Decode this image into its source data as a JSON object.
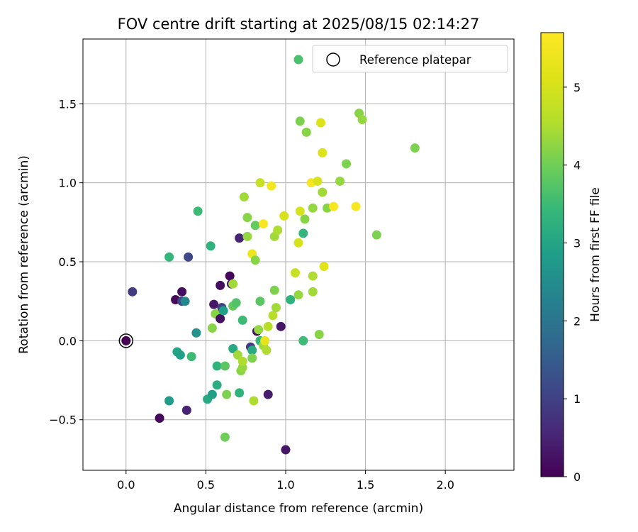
{
  "chart_data": {
    "type": "scatter",
    "title": "FOV centre drift starting at 2025/08/15 02:14:27",
    "xlabel": "Angular distance from reference (arcmin)",
    "ylabel": "Rotation from reference (arcmin)",
    "xlim": [
      -0.27,
      2.43
    ],
    "ylim": [
      -0.82,
      1.91
    ],
    "x_ticks": [
      0.0,
      0.5,
      1.0,
      1.5,
      2.0
    ],
    "x_tick_labels": [
      "0.0",
      "0.5",
      "1.0",
      "1.5",
      "2.0"
    ],
    "y_ticks": [
      -0.5,
      0.0,
      0.5,
      1.0,
      1.5
    ],
    "y_tick_labels": [
      "−0.5",
      "0.0",
      "0.5",
      "1.0",
      "1.5"
    ],
    "grid": true,
    "colormap": "viridis",
    "colorbar": {
      "label": "Hours from first FF file",
      "range": [
        0,
        5.7
      ],
      "ticks": [
        0,
        1,
        2,
        3,
        4,
        5
      ],
      "tick_labels": [
        "0",
        "1",
        "2",
        "3",
        "4",
        "5"
      ]
    },
    "legend": {
      "placement": "top-right",
      "entries": [
        {
          "marker": "filled-circle",
          "label": "",
          "color": "#4ac16d"
        },
        {
          "marker": "open-circle",
          "label": "Reference platepar"
        }
      ]
    },
    "reference_point": {
      "x": 0.0,
      "y": 0.0,
      "hours": 0.0
    },
    "points": [
      {
        "x": 0.04,
        "y": 0.31,
        "c": 0.9
      },
      {
        "x": 0.21,
        "y": -0.49,
        "c": 0.1
      },
      {
        "x": 0.27,
        "y": 0.53,
        "c": 3.4
      },
      {
        "x": 0.27,
        "y": -0.38,
        "c": 2.8
      },
      {
        "x": 0.31,
        "y": 0.26,
        "c": 0.1
      },
      {
        "x": 0.32,
        "y": -0.07,
        "c": 3.0
      },
      {
        "x": 0.34,
        "y": -0.09,
        "c": 2.9
      },
      {
        "x": 0.35,
        "y": 0.31,
        "c": 0.2
      },
      {
        "x": 0.35,
        "y": 0.25,
        "c": 1.1
      },
      {
        "x": 0.37,
        "y": 0.25,
        "c": 2.4
      },
      {
        "x": 0.38,
        "y": -0.44,
        "c": 0.5
      },
      {
        "x": 0.39,
        "y": 0.53,
        "c": 1.1
      },
      {
        "x": 0.41,
        "y": -0.1,
        "c": 3.5
      },
      {
        "x": 0.44,
        "y": 0.05,
        "c": 2.6
      },
      {
        "x": 0.45,
        "y": 0.82,
        "c": 3.5
      },
      {
        "x": 0.51,
        "y": -0.37,
        "c": 3.1
      },
      {
        "x": 0.53,
        "y": 0.6,
        "c": 3.3
      },
      {
        "x": 0.54,
        "y": -0.34,
        "c": 2.9
      },
      {
        "x": 0.54,
        "y": 0.08,
        "c": 4.2
      },
      {
        "x": 0.55,
        "y": 0.23,
        "c": 0.3
      },
      {
        "x": 0.56,
        "y": 0.17,
        "c": 4.2
      },
      {
        "x": 0.57,
        "y": -0.16,
        "c": 3.3
      },
      {
        "x": 0.57,
        "y": -0.28,
        "c": 3.2
      },
      {
        "x": 0.59,
        "y": 0.14,
        "c": 0.2
      },
      {
        "x": 0.59,
        "y": 0.35,
        "c": 0.2
      },
      {
        "x": 0.6,
        "y": 0.21,
        "c": 1.0
      },
      {
        "x": 0.61,
        "y": 0.19,
        "c": 2.9
      },
      {
        "x": 0.62,
        "y": -0.16,
        "c": 3.8
      },
      {
        "x": 0.62,
        "y": -0.61,
        "c": 4.0
      },
      {
        "x": 0.63,
        "y": -0.34,
        "c": 4.1
      },
      {
        "x": 0.65,
        "y": 0.41,
        "c": 0.1
      },
      {
        "x": 0.66,
        "y": 0.36,
        "c": 0.3
      },
      {
        "x": 0.67,
        "y": 0.36,
        "c": 4.4
      },
      {
        "x": 0.67,
        "y": -0.05,
        "c": 3.1
      },
      {
        "x": 0.67,
        "y": 0.22,
        "c": 3.9
      },
      {
        "x": 0.69,
        "y": 0.24,
        "c": 3.7
      },
      {
        "x": 0.7,
        "y": -0.09,
        "c": 4.4
      },
      {
        "x": 0.71,
        "y": 0.65,
        "c": 0.5
      },
      {
        "x": 0.71,
        "y": -0.33,
        "c": 3.3
      },
      {
        "x": 0.72,
        "y": -0.19,
        "c": 4.2
      },
      {
        "x": 0.73,
        "y": 0.13,
        "c": 3.5
      },
      {
        "x": 0.73,
        "y": -0.17,
        "c": 4.3
      },
      {
        "x": 0.73,
        "y": -0.13,
        "c": 4.5
      },
      {
        "x": 0.74,
        "y": 0.91,
        "c": 4.4
      },
      {
        "x": 0.76,
        "y": 0.78,
        "c": 4.2
      },
      {
        "x": 0.76,
        "y": 0.66,
        "c": 4.3
      },
      {
        "x": 0.78,
        "y": -0.04,
        "c": 0.9
      },
      {
        "x": 0.79,
        "y": -0.06,
        "c": 3.1
      },
      {
        "x": 0.79,
        "y": -0.11,
        "c": 4.1
      },
      {
        "x": 0.79,
        "y": 0.55,
        "c": 5.4
      },
      {
        "x": 0.8,
        "y": -0.38,
        "c": 4.5
      },
      {
        "x": 0.81,
        "y": 0.73,
        "c": 3.9
      },
      {
        "x": 0.81,
        "y": 0.51,
        "c": 4.2
      },
      {
        "x": 0.82,
        "y": 0.06,
        "c": 0.2
      },
      {
        "x": 0.83,
        "y": 0.07,
        "c": 4.3
      },
      {
        "x": 0.84,
        "y": 0.25,
        "c": 3.8
      },
      {
        "x": 0.84,
        "y": 0.0,
        "c": 3.4
      },
      {
        "x": 0.84,
        "y": 1.0,
        "c": 4.8
      },
      {
        "x": 0.86,
        "y": 0.74,
        "c": 5.6
      },
      {
        "x": 0.86,
        "y": -0.03,
        "c": 4.4
      },
      {
        "x": 0.87,
        "y": 0.0,
        "c": 5.3
      },
      {
        "x": 0.88,
        "y": -0.06,
        "c": 4.5
      },
      {
        "x": 0.89,
        "y": 0.09,
        "c": 4.6
      },
      {
        "x": 0.89,
        "y": -0.34,
        "c": 0.4
      },
      {
        "x": 0.91,
        "y": 0.98,
        "c": 5.5
      },
      {
        "x": 0.92,
        "y": 0.16,
        "c": 4.6
      },
      {
        "x": 0.93,
        "y": 0.66,
        "c": 4.4
      },
      {
        "x": 0.93,
        "y": 0.32,
        "c": 4.1
      },
      {
        "x": 0.94,
        "y": 0.21,
        "c": 4.4
      },
      {
        "x": 0.95,
        "y": 0.7,
        "c": 4.5
      },
      {
        "x": 0.97,
        "y": 0.09,
        "c": 0.3
      },
      {
        "x": 0.99,
        "y": 0.79,
        "c": 5.0
      },
      {
        "x": 1.0,
        "y": -0.69,
        "c": 0.3
      },
      {
        "x": 1.03,
        "y": 0.26,
        "c": 3.3
      },
      {
        "x": 1.06,
        "y": 0.43,
        "c": 4.8
      },
      {
        "x": 1.08,
        "y": 0.62,
        "c": 5.0
      },
      {
        "x": 1.08,
        "y": 0.29,
        "c": 4.3
      },
      {
        "x": 1.09,
        "y": 1.39,
        "c": 4.1
      },
      {
        "x": 1.09,
        "y": 0.82,
        "c": 5.0
      },
      {
        "x": 1.11,
        "y": 0.68,
        "c": 3.4
      },
      {
        "x": 1.11,
        "y": 0.0,
        "c": 3.5
      },
      {
        "x": 1.12,
        "y": 0.77,
        "c": 4.2
      },
      {
        "x": 1.13,
        "y": 1.32,
        "c": 4.2
      },
      {
        "x": 1.16,
        "y": 1.0,
        "c": 5.6
      },
      {
        "x": 1.17,
        "y": 0.84,
        "c": 4.3
      },
      {
        "x": 1.17,
        "y": 0.41,
        "c": 4.5
      },
      {
        "x": 1.17,
        "y": 0.31,
        "c": 4.4
      },
      {
        "x": 1.2,
        "y": 1.01,
        "c": 5.0
      },
      {
        "x": 1.21,
        "y": 0.04,
        "c": 4.2
      },
      {
        "x": 1.22,
        "y": 1.38,
        "c": 5.1
      },
      {
        "x": 1.23,
        "y": 0.94,
        "c": 4.4
      },
      {
        "x": 1.23,
        "y": 1.19,
        "c": 5.1
      },
      {
        "x": 1.24,
        "y": 0.47,
        "c": 5.2
      },
      {
        "x": 1.26,
        "y": 0.84,
        "c": 4.2
      },
      {
        "x": 1.3,
        "y": 0.85,
        "c": 5.6
      },
      {
        "x": 1.34,
        "y": 1.01,
        "c": 4.3
      },
      {
        "x": 1.38,
        "y": 1.12,
        "c": 4.1
      },
      {
        "x": 1.44,
        "y": 0.85,
        "c": 5.6
      },
      {
        "x": 1.46,
        "y": 1.44,
        "c": 4.2
      },
      {
        "x": 1.48,
        "y": 1.4,
        "c": 4.3
      },
      {
        "x": 1.57,
        "y": 0.67,
        "c": 4.1
      },
      {
        "x": 1.81,
        "y": 1.22,
        "c": 4.1
      }
    ]
  }
}
